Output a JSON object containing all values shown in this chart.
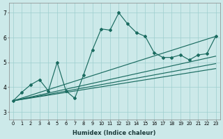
{
  "xlabel": "Humidex (Indice chaleur)",
  "ylabel": "",
  "xlim": [
    -0.5,
    23.5
  ],
  "ylim": [
    2.7,
    7.4
  ],
  "xticks": [
    0,
    1,
    2,
    3,
    4,
    5,
    6,
    7,
    8,
    9,
    10,
    11,
    12,
    13,
    14,
    15,
    16,
    17,
    18,
    19,
    20,
    21,
    22,
    23
  ],
  "yticks": [
    3,
    4,
    5,
    6,
    7
  ],
  "bg_color": "#cce9e9",
  "line_color": "#1a6b60",
  "series_zigzag": [
    3.45,
    3.8,
    4.1,
    4.3,
    3.85,
    5.0,
    3.85,
    3.55,
    4.5,
    5.5,
    6.35,
    6.3,
    7.0,
    6.55,
    6.2,
    6.05,
    5.4,
    5.2,
    5.2,
    5.3,
    5.1,
    5.3,
    5.35,
    6.05
  ],
  "series_linear": [
    {
      "x0": 0,
      "y0": 3.45,
      "x1": 23,
      "y1": 6.05
    },
    {
      "x0": 0,
      "y0": 3.45,
      "x1": 23,
      "y1": 5.25
    },
    {
      "x0": 0,
      "y0": 3.45,
      "x1": 23,
      "y1": 4.95
    },
    {
      "x0": 0,
      "y0": 3.45,
      "x1": 23,
      "y1": 4.75
    }
  ]
}
